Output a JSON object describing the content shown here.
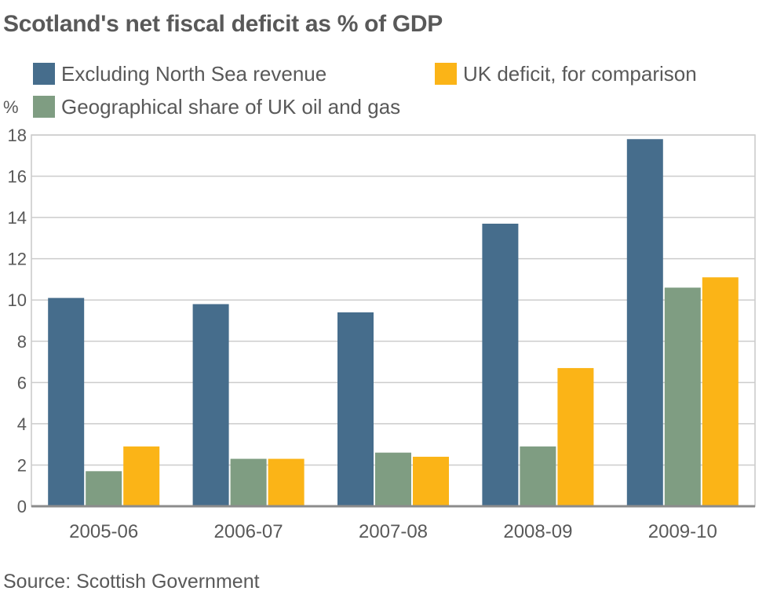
{
  "chart_data": {
    "type": "bar",
    "title": "Scotland's net fiscal deficit as % of GDP",
    "ylabel": "%",
    "xlabel": "",
    "ylim": [
      0,
      18
    ],
    "yticks": [
      0,
      2,
      4,
      6,
      8,
      10,
      12,
      14,
      16,
      18
    ],
    "grid": true,
    "legend_position": "top",
    "categories": [
      "2005-06",
      "2006-07",
      "2007-08",
      "2008-09",
      "2009-10"
    ],
    "series": [
      {
        "name": "Excluding North Sea revenue",
        "color": "#466d8c",
        "values": [
          10.1,
          9.8,
          9.4,
          13.7,
          17.8
        ]
      },
      {
        "name": "Geographical share of UK oil and gas",
        "color": "#7f9d82",
        "values": [
          1.7,
          2.3,
          2.6,
          2.9,
          10.6
        ]
      },
      {
        "name": "UK deficit, for comparison",
        "color": "#fbb417",
        "values": [
          2.9,
          2.3,
          2.4,
          6.7,
          11.1
        ]
      }
    ],
    "source": "Source: Scottish Government"
  }
}
